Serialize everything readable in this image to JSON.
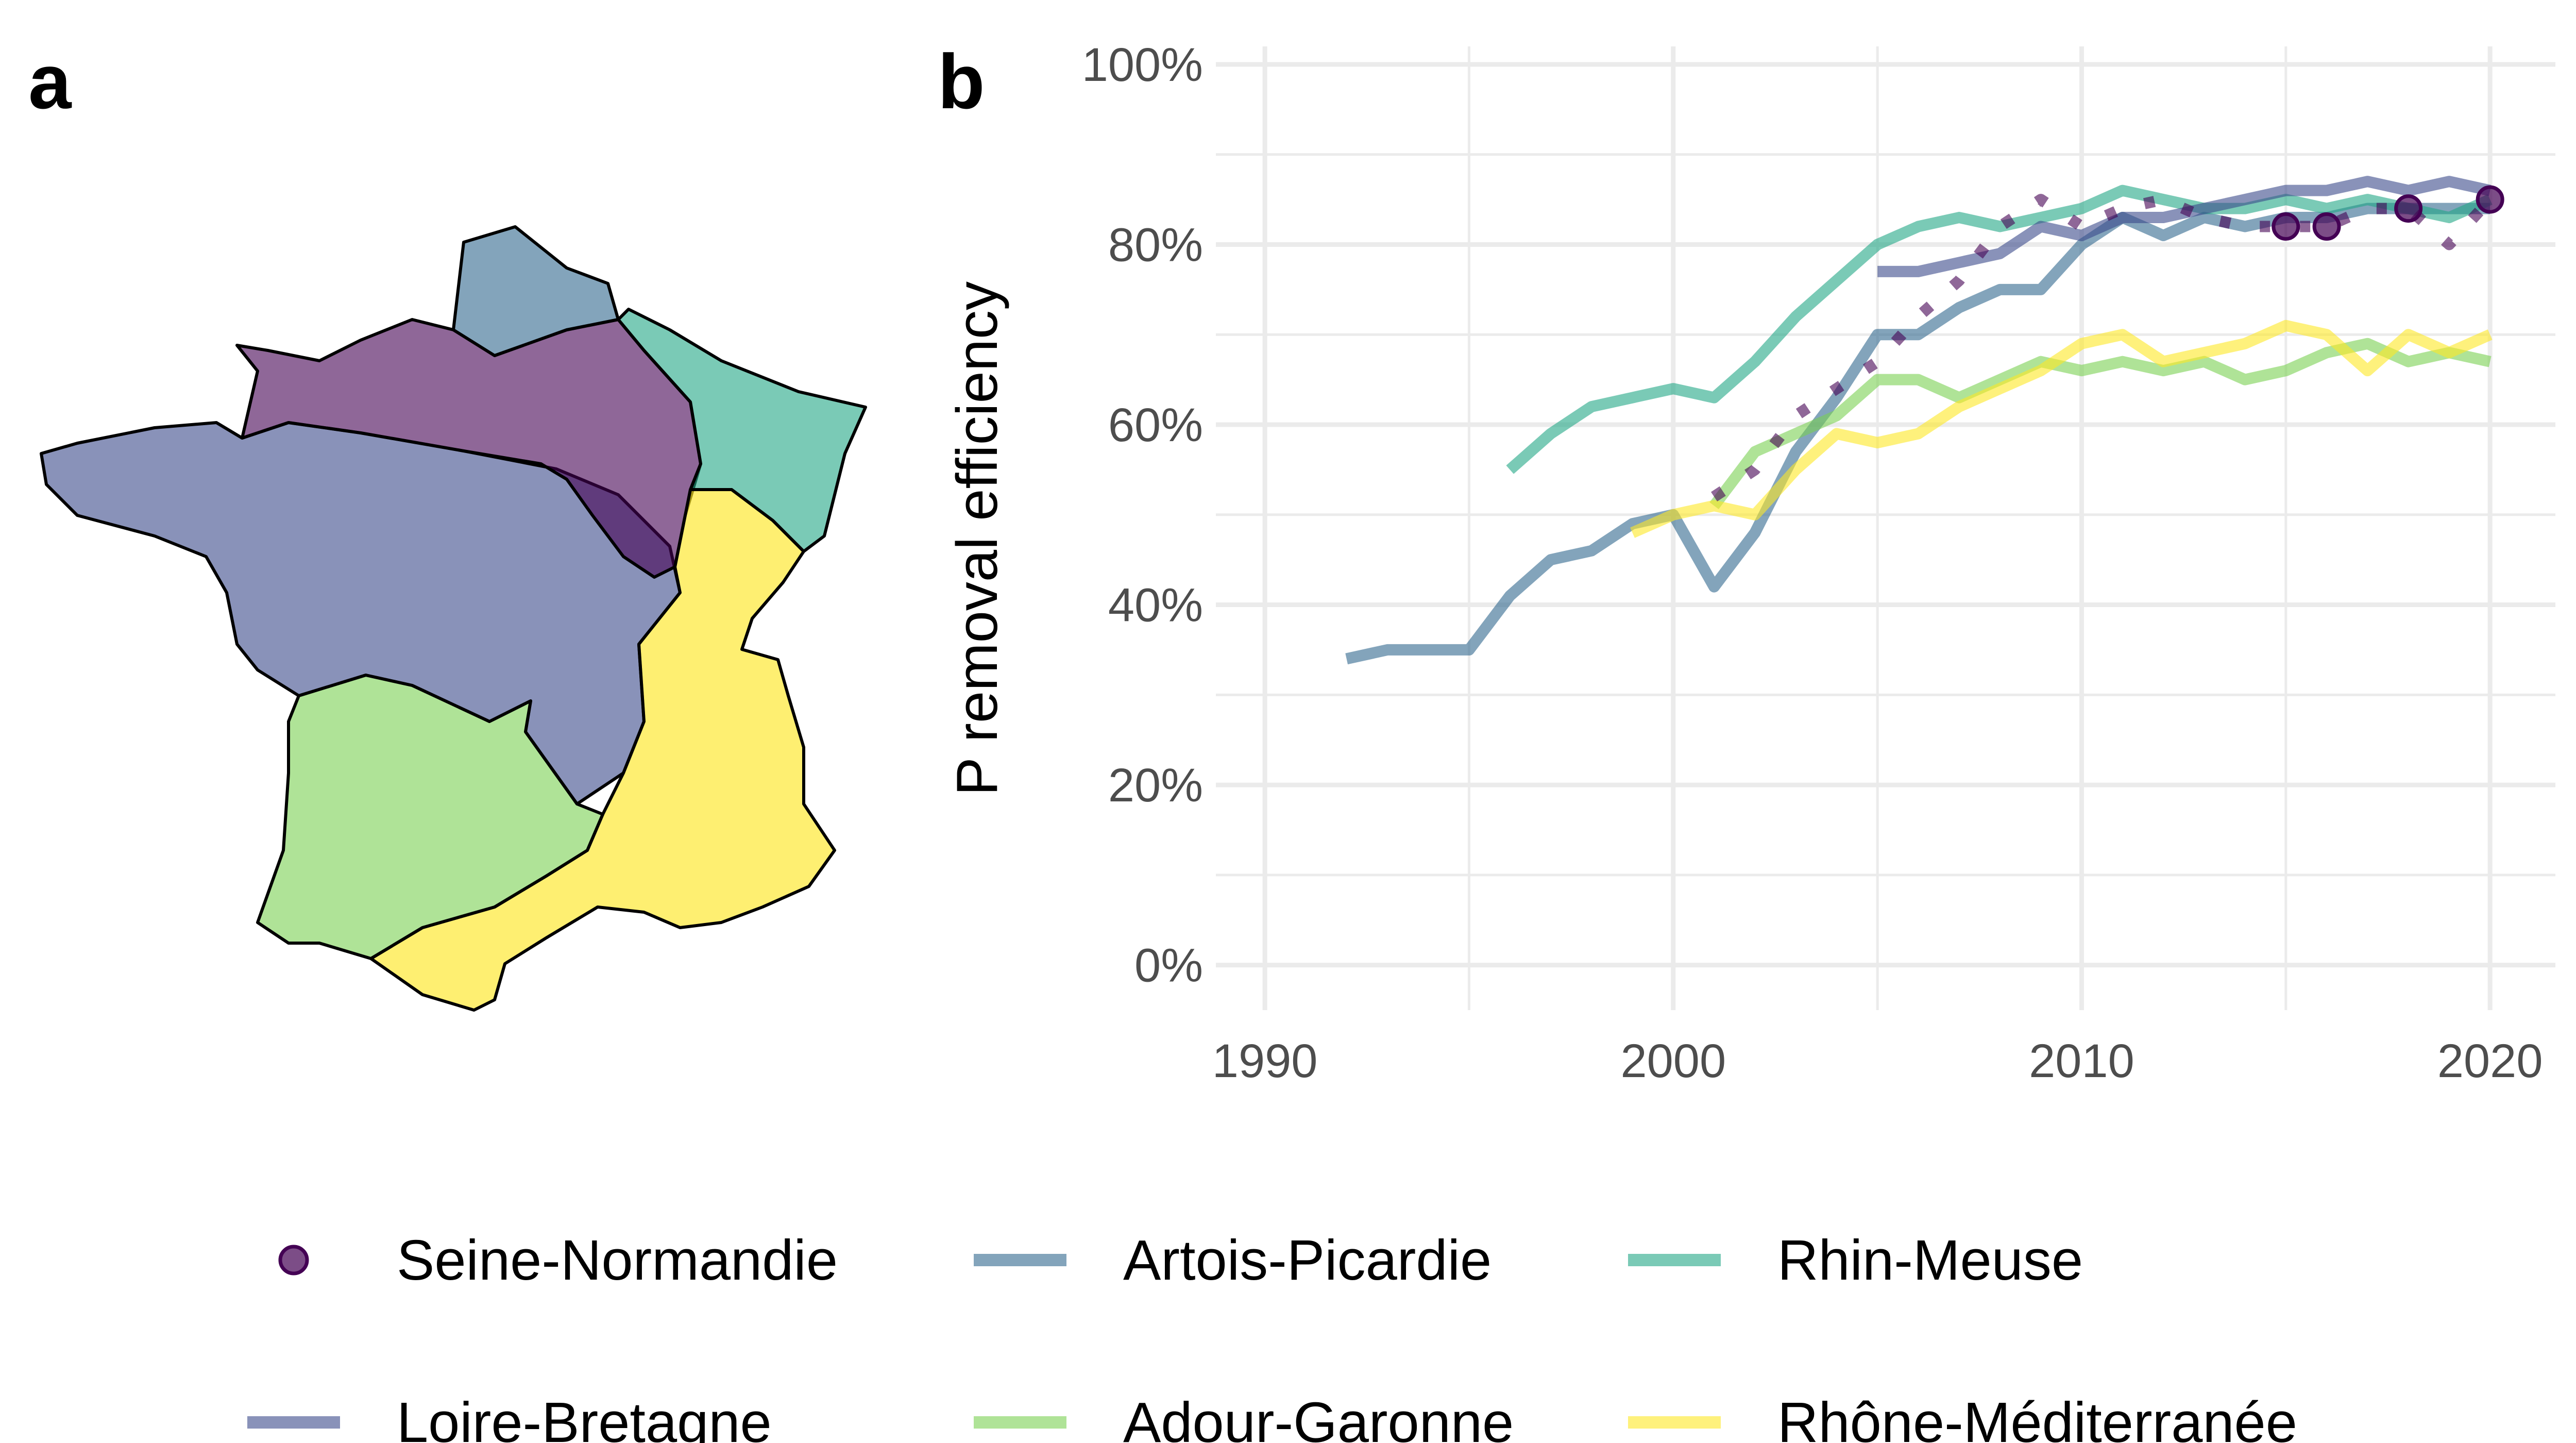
{
  "panels": {
    "a": "a",
    "b": "b"
  },
  "colors": {
    "Seine-Normandie": "#440154",
    "Artois-Picardie": "#31688e",
    "Rhin-Meuse": "#21a685",
    "Loire-Bretagne": "#3b4a8b",
    "Adour-Garonne": "#7ad151",
    "Rhône-Méditerranée": "#fde725"
  },
  "chart_data": {
    "type": "line",
    "title": "",
    "xlabel": "",
    "ylabel": "P removal efficiency",
    "xlim": [
      1988.8,
      2021.6
    ],
    "ylim": [
      -5,
      102
    ],
    "x_ticks": [
      1990,
      2000,
      2010,
      2020
    ],
    "x_tick_labels": [
      "1990",
      "2000",
      "2010",
      "2020"
    ],
    "y_ticks": [
      0,
      20,
      40,
      60,
      80,
      100
    ],
    "y_tick_labels": [
      "0%",
      "20%",
      "40%",
      "60%",
      "80%",
      "100%"
    ],
    "grid": true,
    "legend_position": "bottom",
    "series": [
      {
        "name": "Artois-Picardie",
        "x": [
          1992,
          1993,
          1994,
          1995,
          1996,
          1997,
          1998,
          1999,
          2000,
          2001,
          2002,
          2003,
          2004,
          2005,
          2006,
          2007,
          2008,
          2009,
          2010,
          2011,
          2012,
          2013,
          2014,
          2015,
          2016,
          2017,
          2018,
          2019,
          2020
        ],
        "y": [
          34,
          35,
          35,
          35,
          41,
          45,
          46,
          49,
          50,
          42,
          48,
          57,
          63,
          70,
          70,
          73,
          75,
          75,
          80,
          83,
          81,
          83,
          82,
          83,
          83,
          84,
          84,
          84,
          84
        ]
      },
      {
        "name": "Rhin-Meuse",
        "x": [
          1996,
          1997,
          1998,
          1999,
          2000,
          2001,
          2002,
          2003,
          2004,
          2005,
          2006,
          2007,
          2008,
          2009,
          2010,
          2011,
          2012,
          2013,
          2014,
          2015,
          2016,
          2017,
          2018,
          2019,
          2020
        ],
        "y": [
          55,
          59,
          62,
          63,
          64,
          63,
          67,
          72,
          76,
          80,
          82,
          83,
          82,
          83,
          84,
          86,
          85,
          84,
          84,
          85,
          84,
          85,
          84,
          83,
          85
        ]
      },
      {
        "name": "Loire-Bretagne",
        "x": [
          2005,
          2006,
          2007,
          2008,
          2009,
          2010,
          2011,
          2012,
          2013,
          2014,
          2015,
          2016,
          2017,
          2018,
          2019,
          2020
        ],
        "y": [
          77,
          77,
          78,
          79,
          82,
          81,
          83,
          83,
          84,
          85,
          86,
          86,
          87,
          86,
          87,
          86
        ]
      },
      {
        "name": "Adour-Garonne",
        "x": [
          2001,
          2002,
          2003,
          2004,
          2005,
          2006,
          2007,
          2008,
          2009,
          2010,
          2011,
          2012,
          2013,
          2014,
          2015,
          2016,
          2017,
          2018,
          2019,
          2020
        ],
        "y": [
          51,
          57,
          59,
          61,
          65,
          65,
          63,
          65,
          67,
          66,
          67,
          66,
          67,
          65,
          66,
          68,
          69,
          67,
          68,
          67
        ]
      },
      {
        "name": "Rhône-Méditerranée",
        "x": [
          1999,
          2000,
          2001,
          2002,
          2003,
          2004,
          2005,
          2006,
          2007,
          2008,
          2009,
          2010,
          2011,
          2012,
          2013,
          2014,
          2015,
          2016,
          2017,
          2018,
          2019,
          2020
        ],
        "y": [
          48,
          50,
          51,
          50,
          55,
          59,
          58,
          59,
          62,
          64,
          66,
          69,
          70,
          67,
          68,
          69,
          71,
          70,
          66,
          70,
          68,
          70
        ]
      },
      {
        "name": "Seine-Normandie",
        "x": [
          2001,
          2002,
          2003,
          2004,
          2005,
          2006,
          2007,
          2008,
          2009,
          2010,
          2011,
          2012,
          2013,
          2014,
          2015,
          2016,
          2017,
          2018,
          2019,
          2020
        ],
        "y": [
          52,
          55,
          61,
          64,
          67,
          72,
          76,
          82,
          85,
          82,
          84,
          85,
          83,
          82,
          82,
          82,
          84,
          84,
          80,
          85
        ],
        "style": "dotted",
        "points": {
          "x": [
            2015,
            2016,
            2018,
            2020
          ],
          "y": [
            82,
            82,
            84,
            85
          ]
        }
      }
    ]
  },
  "legend": [
    {
      "name": "Seine-Normandie",
      "key": "point"
    },
    {
      "name": "Artois-Picardie",
      "key": "line"
    },
    {
      "name": "Rhin-Meuse",
      "key": "line"
    },
    {
      "name": "Loire-Bretagne",
      "key": "line"
    },
    {
      "name": "Adour-Garonne",
      "key": "line"
    },
    {
      "name": "Rhône-Méditerranée",
      "key": "line"
    }
  ]
}
